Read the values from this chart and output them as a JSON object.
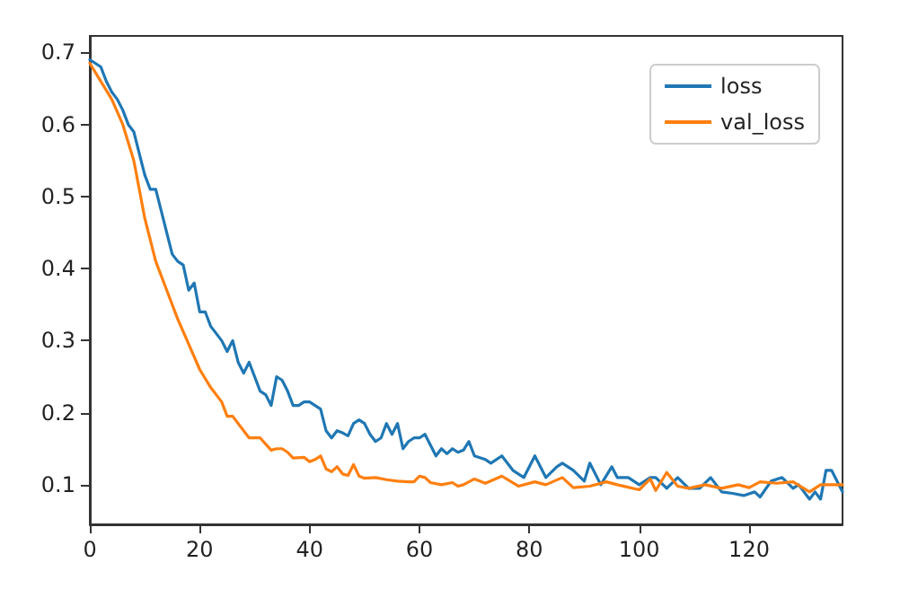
{
  "chart_data": {
    "type": "line",
    "xlim": [
      0,
      137
    ],
    "ylim": [
      0.045,
      0.723
    ],
    "xticks": [
      0,
      20,
      40,
      60,
      80,
      100,
      120
    ],
    "yticks": [
      0.1,
      0.2,
      0.3,
      0.4,
      0.5,
      0.6,
      0.7
    ],
    "legend": "top right",
    "grid": false,
    "marker": "none",
    "line_style": "solid",
    "series": [
      {
        "name": "loss",
        "color": "#1f77b4",
        "x": [
          0,
          1,
          2,
          3,
          4,
          5,
          6,
          7,
          8,
          9,
          10,
          11,
          12,
          13,
          14,
          15,
          16,
          17,
          18,
          19,
          20,
          21,
          22,
          23,
          24,
          25,
          26,
          27,
          28,
          29,
          30,
          31,
          32,
          33,
          34,
          35,
          36,
          37,
          38,
          39,
          40,
          41,
          42,
          43,
          44,
          45,
          46,
          47,
          48,
          49,
          50,
          51,
          52,
          53,
          54,
          55,
          56,
          57,
          58,
          59,
          60,
          61,
          62,
          63,
          64,
          65,
          66,
          67,
          68,
          69,
          70,
          72,
          73,
          75,
          77,
          79,
          81,
          83,
          85,
          86,
          88,
          90,
          91,
          93,
          95,
          96,
          98,
          100,
          102,
          103,
          105,
          107,
          109,
          111,
          113,
          115,
          117,
          119,
          121,
          122,
          124,
          126,
          128,
          129,
          131,
          132,
          133,
          134,
          135,
          137
        ],
        "values": [
          0.69,
          0.685,
          0.68,
          0.66,
          0.645,
          0.635,
          0.62,
          0.6,
          0.59,
          0.56,
          0.53,
          0.51,
          0.51,
          0.48,
          0.45,
          0.42,
          0.41,
          0.405,
          0.37,
          0.38,
          0.34,
          0.34,
          0.32,
          0.31,
          0.3,
          0.285,
          0.3,
          0.27,
          0.255,
          0.27,
          0.25,
          0.23,
          0.225,
          0.21,
          0.25,
          0.245,
          0.23,
          0.21,
          0.21,
          0.215,
          0.215,
          0.21,
          0.205,
          0.175,
          0.165,
          0.175,
          0.172,
          0.168,
          0.185,
          0.19,
          0.185,
          0.17,
          0.16,
          0.165,
          0.185,
          0.17,
          0.185,
          0.15,
          0.16,
          0.165,
          0.165,
          0.17,
          0.155,
          0.14,
          0.15,
          0.143,
          0.15,
          0.145,
          0.148,
          0.16,
          0.14,
          0.135,
          0.13,
          0.14,
          0.12,
          0.11,
          0.14,
          0.11,
          0.125,
          0.13,
          0.12,
          0.105,
          0.13,
          0.1,
          0.125,
          0.11,
          0.11,
          0.1,
          0.11,
          0.11,
          0.095,
          0.11,
          0.095,
          0.095,
          0.11,
          0.09,
          0.088,
          0.085,
          0.09,
          0.083,
          0.105,
          0.11,
          0.095,
          0.1,
          0.08,
          0.09,
          0.08,
          0.12,
          0.12,
          0.09
        ]
      },
      {
        "name": "val_loss",
        "color": "#ff7f0e",
        "x": [
          0,
          2,
          4,
          6,
          8,
          10,
          12,
          14,
          16,
          18,
          20,
          22,
          24,
          25,
          26,
          28,
          29,
          30,
          31,
          33,
          34,
          35,
          36,
          37,
          39,
          40,
          41,
          42,
          43,
          44,
          45,
          46,
          47,
          48,
          49,
          50,
          52,
          54,
          56,
          58,
          59,
          60,
          61,
          62,
          64,
          66,
          67,
          68,
          70,
          72,
          75,
          78,
          81,
          83,
          86,
          88,
          91,
          94,
          96,
          100,
          102,
          103,
          105,
          107,
          109,
          112,
          115,
          118,
          120,
          122,
          125,
          128,
          131,
          133,
          137
        ],
        "values": [
          0.685,
          0.66,
          0.635,
          0.6,
          0.55,
          0.47,
          0.41,
          0.37,
          0.33,
          0.295,
          0.26,
          0.235,
          0.215,
          0.195,
          0.195,
          0.175,
          0.165,
          0.165,
          0.165,
          0.148,
          0.15,
          0.15,
          0.145,
          0.137,
          0.138,
          0.132,
          0.135,
          0.14,
          0.122,
          0.118,
          0.125,
          0.115,
          0.113,
          0.128,
          0.112,
          0.109,
          0.11,
          0.107,
          0.105,
          0.104,
          0.104,
          0.112,
          0.11,
          0.103,
          0.1,
          0.103,
          0.098,
          0.1,
          0.108,
          0.102,
          0.112,
          0.098,
          0.104,
          0.1,
          0.11,
          0.096,
          0.098,
          0.104,
          0.1,
          0.093,
          0.108,
          0.092,
          0.117,
          0.098,
          0.095,
          0.1,
          0.095,
          0.1,
          0.096,
          0.104,
          0.102,
          0.104,
          0.09,
          0.1,
          0.1
        ]
      }
    ]
  }
}
